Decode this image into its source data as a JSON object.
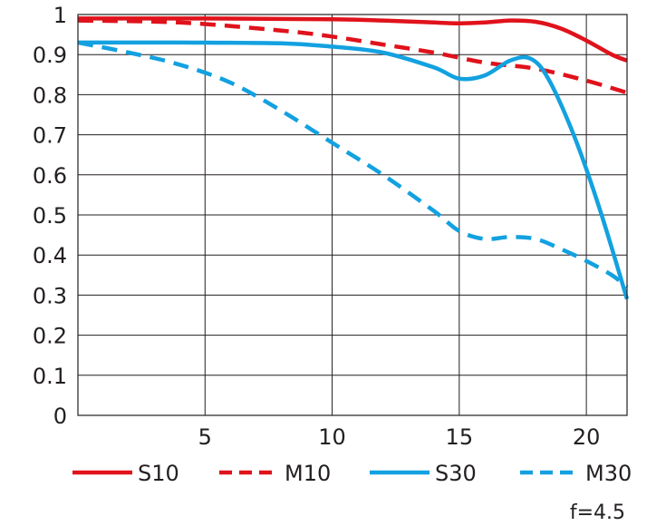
{
  "chart_data": {
    "type": "line",
    "title": "",
    "xlabel": "",
    "ylabel": "",
    "xlim": [
      0,
      21.6
    ],
    "ylim": [
      0,
      1
    ],
    "grid": true,
    "x_ticks": [
      5,
      10,
      15,
      20
    ],
    "x_tick_labels": [
      "5",
      "10",
      "15",
      "20"
    ],
    "y_ticks": [
      0,
      0.1,
      0.2,
      0.3,
      0.4,
      0.5,
      0.6,
      0.7,
      0.8,
      0.9,
      1
    ],
    "y_tick_labels": [
      "0",
      "0.1",
      "0.2",
      "0.3",
      "0.4",
      "0.5",
      "0.6",
      "0.7",
      "0.8",
      "0.9",
      "1"
    ],
    "series": [
      {
        "name": "S10",
        "color": "#e0121b",
        "dash": "solid",
        "x": [
          0,
          5,
          10,
          12,
          14,
          15,
          16,
          17,
          18,
          19,
          20,
          21,
          21.6
        ],
        "y": [
          0.99,
          0.99,
          0.988,
          0.985,
          0.98,
          0.978,
          0.98,
          0.985,
          0.982,
          0.965,
          0.935,
          0.9,
          0.885
        ]
      },
      {
        "name": "M10",
        "color": "#e0121b",
        "dash": "dashed",
        "x": [
          0,
          4,
          8,
          10,
          12,
          14,
          16,
          18,
          20,
          21.6
        ],
        "y": [
          0.985,
          0.98,
          0.96,
          0.945,
          0.925,
          0.905,
          0.88,
          0.865,
          0.835,
          0.805
        ]
      },
      {
        "name": "S30",
        "color": "#13a1e0",
        "dash": "solid",
        "x": [
          0,
          4,
          8,
          10,
          12,
          14,
          15,
          16,
          17,
          17.8,
          18.5,
          19.5,
          20.5,
          21.6
        ],
        "y": [
          0.93,
          0.93,
          0.928,
          0.92,
          0.905,
          0.868,
          0.84,
          0.848,
          0.885,
          0.89,
          0.84,
          0.7,
          0.52,
          0.29
        ]
      },
      {
        "name": "M30",
        "color": "#13a1e0",
        "dash": "dashed",
        "x": [
          0,
          2,
          4,
          6,
          8,
          10,
          12,
          14,
          15,
          16,
          17,
          18,
          19,
          20,
          21,
          21.6
        ],
        "y": [
          0.93,
          0.905,
          0.875,
          0.83,
          0.76,
          0.68,
          0.6,
          0.51,
          0.46,
          0.44,
          0.445,
          0.44,
          0.415,
          0.385,
          0.35,
          0.32
        ]
      }
    ],
    "annotation": "f=4.5"
  }
}
